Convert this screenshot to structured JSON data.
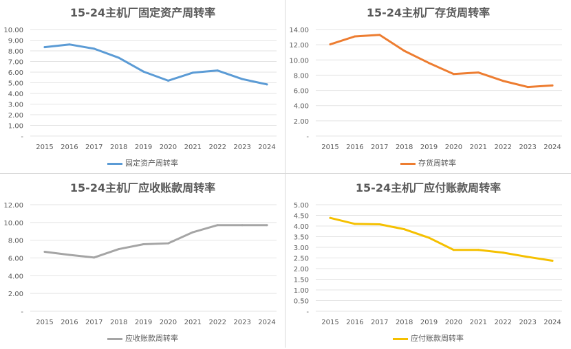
{
  "chart_data": [
    {
      "type": "line",
      "title": "15-24主机厂固定资产周转率",
      "categories": [
        "2015",
        "2016",
        "2017",
        "2018",
        "2019",
        "2020",
        "2021",
        "2022",
        "2023",
        "2024"
      ],
      "series": [
        {
          "name": "固定资产周转率",
          "values": [
            8.35,
            8.6,
            8.2,
            7.35,
            6.05,
            5.2,
            5.95,
            6.15,
            5.35,
            4.85
          ],
          "color": "#5b9bd5"
        }
      ],
      "ylim": [
        0,
        10
      ],
      "yticks": [
        "-",
        "1.00",
        "2.00",
        "3.00",
        "4.00",
        "5.00",
        "6.00",
        "7.00",
        "8.00",
        "9.00",
        "10.00"
      ],
      "grid": true,
      "legend": "bottom"
    },
    {
      "type": "line",
      "title": "15-24主机厂存货周转率",
      "categories": [
        "2015",
        "2016",
        "2017",
        "2018",
        "2019",
        "2020",
        "2021",
        "2022",
        "2023",
        "2024"
      ],
      "series": [
        {
          "name": "存货周转率",
          "values": [
            12.05,
            13.1,
            13.3,
            11.2,
            9.6,
            8.15,
            8.35,
            7.25,
            6.45,
            6.65
          ],
          "color": "#ed7d31"
        }
      ],
      "ylim": [
        0,
        14
      ],
      "yticks": [
        "-",
        "2.00",
        "4.00",
        "6.00",
        "8.00",
        "10.00",
        "12.00",
        "14.00"
      ],
      "grid": true,
      "legend": "bottom"
    },
    {
      "type": "line",
      "title": "15-24主机厂应收账款周转率",
      "categories": [
        "2015",
        "2016",
        "2017",
        "2018",
        "2019",
        "2020",
        "2021",
        "2022",
        "2023",
        "2024"
      ],
      "series": [
        {
          "name": "应收账款周转率",
          "values": [
            6.7,
            6.35,
            6.05,
            7.0,
            7.55,
            7.65,
            8.9,
            9.7,
            9.7,
            9.7
          ],
          "color": "#a5a5a5"
        }
      ],
      "ylim": [
        0,
        12
      ],
      "yticks": [
        "-",
        "2.00",
        "4.00",
        "6.00",
        "8.00",
        "10.00",
        "12.00"
      ],
      "grid": true,
      "legend": "bottom"
    },
    {
      "type": "line",
      "title": "15-24主机厂应付账款周转率",
      "categories": [
        "2015",
        "2016",
        "2017",
        "2018",
        "2019",
        "2020",
        "2021",
        "2022",
        "2023",
        "2024"
      ],
      "series": [
        {
          "name": "应付账款周转率",
          "values": [
            4.38,
            4.1,
            4.08,
            3.85,
            3.45,
            2.88,
            2.88,
            2.75,
            2.55,
            2.37
          ],
          "color": "#f5c000"
        }
      ],
      "ylim": [
        0,
        5
      ],
      "yticks": [
        "-",
        "0.50",
        "1.00",
        "1.50",
        "2.00",
        "2.50",
        "3.00",
        "3.50",
        "4.00",
        "4.50",
        "5.00"
      ],
      "grid": true,
      "legend": "bottom"
    }
  ]
}
